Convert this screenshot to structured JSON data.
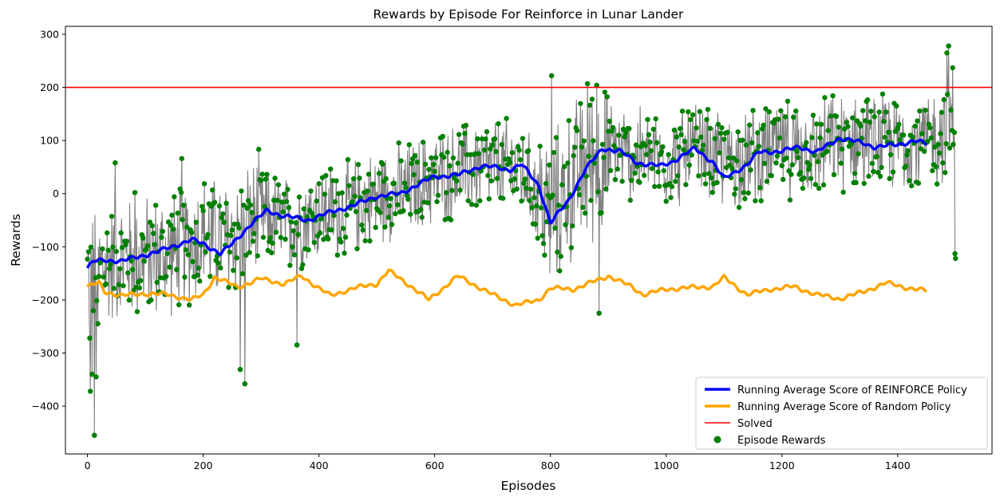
{
  "chart_data": {
    "type": "line",
    "title": "Rewards by Episode For Reinforce in Lunar Lander",
    "xlabel": "Episodes",
    "ylabel": "Rewards",
    "xlim": [
      -38,
      1563
    ],
    "ylim": [
      -490,
      315
    ],
    "x_ticks": [
      0,
      200,
      400,
      600,
      800,
      1000,
      1200,
      1400
    ],
    "y_ticks": [
      -400,
      -300,
      -200,
      -100,
      0,
      100,
      200,
      300
    ],
    "grid": false,
    "legend_position": "bottom-right",
    "solved_threshold": 200,
    "episodes_count": 1500,
    "series": [
      {
        "name": "Running Average Score of REINFORCE Policy",
        "color": "#0000ff",
        "anchors": [
          [
            0,
            -140
          ],
          [
            10,
            -128
          ],
          [
            30,
            -125
          ],
          [
            60,
            -127
          ],
          [
            90,
            -118
          ],
          [
            120,
            -110
          ],
          [
            150,
            -98
          ],
          [
            180,
            -87
          ],
          [
            200,
            -94
          ],
          [
            230,
            -113
          ],
          [
            250,
            -95
          ],
          [
            280,
            -60
          ],
          [
            310,
            -32
          ],
          [
            340,
            -42
          ],
          [
            380,
            -50
          ],
          [
            420,
            -35
          ],
          [
            460,
            -22
          ],
          [
            500,
            -5
          ],
          [
            540,
            0
          ],
          [
            580,
            22
          ],
          [
            600,
            32
          ],
          [
            640,
            35
          ],
          [
            680,
            52
          ],
          [
            700,
            50
          ],
          [
            730,
            45
          ],
          [
            750,
            55
          ],
          [
            780,
            15
          ],
          [
            800,
            -55
          ],
          [
            830,
            -15
          ],
          [
            860,
            45
          ],
          [
            890,
            85
          ],
          [
            920,
            80
          ],
          [
            950,
            58
          ],
          [
            990,
            52
          ],
          [
            1010,
            60
          ],
          [
            1050,
            85
          ],
          [
            1080,
            60
          ],
          [
            1100,
            28
          ],
          [
            1140,
            55
          ],
          [
            1160,
            78
          ],
          [
            1200,
            80
          ],
          [
            1230,
            88
          ],
          [
            1260,
            78
          ],
          [
            1300,
            105
          ],
          [
            1320,
            100
          ],
          [
            1340,
            95
          ],
          [
            1360,
            88
          ],
          [
            1400,
            92
          ],
          [
            1430,
            100
          ],
          [
            1450,
            93
          ]
        ]
      },
      {
        "name": "Running Average Score of Random Policy",
        "color": "#ffa500",
        "anchors": [
          [
            0,
            -175
          ],
          [
            20,
            -168
          ],
          [
            30,
            -185
          ],
          [
            60,
            -192
          ],
          [
            100,
            -188
          ],
          [
            140,
            -190
          ],
          [
            180,
            -200
          ],
          [
            200,
            -190
          ],
          [
            220,
            -157
          ],
          [
            260,
            -176
          ],
          [
            300,
            -160
          ],
          [
            340,
            -170
          ],
          [
            370,
            -155
          ],
          [
            400,
            -178
          ],
          [
            420,
            -192
          ],
          [
            460,
            -178
          ],
          [
            500,
            -170
          ],
          [
            520,
            -145
          ],
          [
            560,
            -175
          ],
          [
            590,
            -200
          ],
          [
            640,
            -155
          ],
          [
            700,
            -190
          ],
          [
            740,
            -210
          ],
          [
            780,
            -200
          ],
          [
            800,
            -178
          ],
          [
            840,
            -180
          ],
          [
            900,
            -155
          ],
          [
            940,
            -175
          ],
          [
            960,
            -190
          ],
          [
            1000,
            -180
          ],
          [
            1040,
            -177
          ],
          [
            1080,
            -175
          ],
          [
            1100,
            -158
          ],
          [
            1140,
            -190
          ],
          [
            1180,
            -180
          ],
          [
            1220,
            -175
          ],
          [
            1260,
            -190
          ],
          [
            1300,
            -198
          ],
          [
            1340,
            -185
          ],
          [
            1380,
            -168
          ],
          [
            1420,
            -178
          ],
          [
            1450,
            -183
          ]
        ]
      },
      {
        "name": "Solved",
        "color": "#ff0000",
        "value": 200
      },
      {
        "name": "Episode Rewards",
        "color": "#008000",
        "line_color": "#808080",
        "center_anchors": [
          [
            0,
            -150
          ],
          [
            50,
            -125
          ],
          [
            100,
            -120
          ],
          [
            150,
            -110
          ],
          [
            200,
            -80
          ],
          [
            240,
            -90
          ],
          [
            300,
            -40
          ],
          [
            350,
            -60
          ],
          [
            400,
            -35
          ],
          [
            450,
            -30
          ],
          [
            500,
            -5
          ],
          [
            550,
            5
          ],
          [
            600,
            30
          ],
          [
            650,
            45
          ],
          [
            700,
            55
          ],
          [
            750,
            45
          ],
          [
            800,
            -40
          ],
          [
            820,
            -10
          ],
          [
            850,
            40
          ],
          [
            900,
            80
          ],
          [
            950,
            70
          ],
          [
            1000,
            65
          ],
          [
            1050,
            80
          ],
          [
            1100,
            60
          ],
          [
            1150,
            75
          ],
          [
            1200,
            85
          ],
          [
            1250,
            80
          ],
          [
            1300,
            100
          ],
          [
            1350,
            95
          ],
          [
            1400,
            95
          ],
          [
            1450,
            100
          ],
          [
            1500,
            120
          ]
        ],
        "notable_points": [
          [
            5,
            -372
          ],
          [
            12,
            -455
          ],
          [
            8,
            -340
          ],
          [
            15,
            -345
          ],
          [
            4,
            -272
          ],
          [
            18,
            -245
          ],
          [
            48,
            58
          ],
          [
            82,
            2
          ],
          [
            163,
            66
          ],
          [
            264,
            -331
          ],
          [
            272,
            -358
          ],
          [
            362,
            -285
          ],
          [
            802,
            222
          ],
          [
            864,
            207
          ],
          [
            880,
            204
          ],
          [
            884,
            -225
          ],
          [
            1485,
            265
          ],
          [
            1488,
            278
          ],
          [
            1495,
            237
          ],
          [
            1499,
            -113
          ],
          [
            1500,
            -122
          ]
        ]
      }
    ]
  }
}
